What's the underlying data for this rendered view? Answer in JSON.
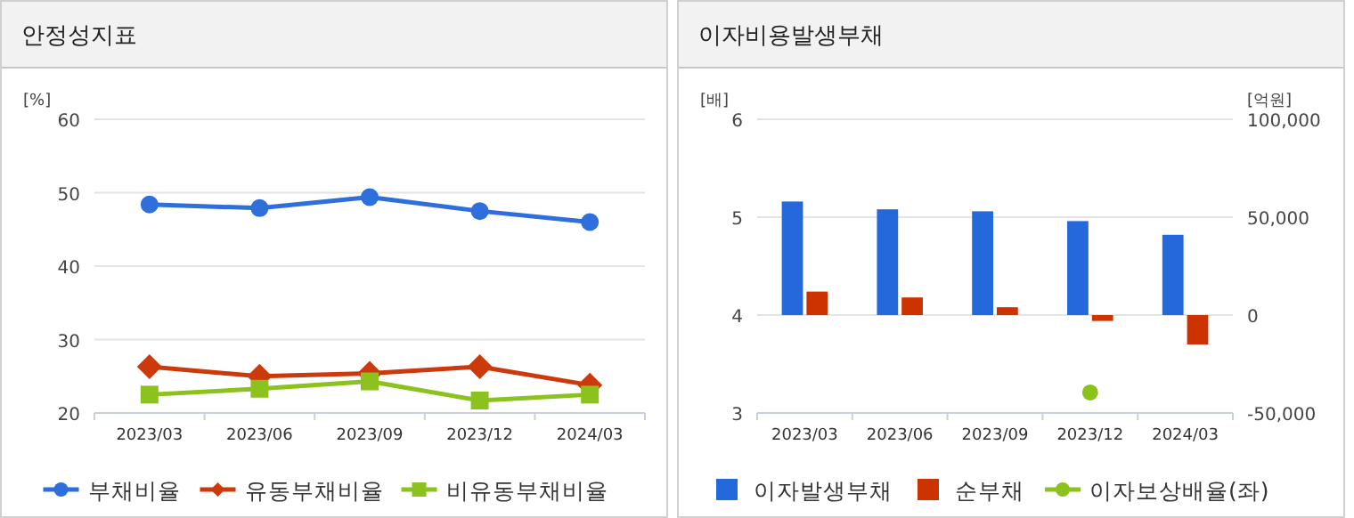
{
  "chart_data": [
    {
      "type": "line",
      "title": "안정성지표",
      "ylabel": "[%]",
      "categories": [
        "2023/03",
        "2023/06",
        "2023/09",
        "2023/12",
        "2024/03"
      ],
      "ylim": [
        20,
        60
      ],
      "yticks": [
        20,
        30,
        40,
        50,
        60
      ],
      "grid": "y",
      "legend": "bottom",
      "line_style": "solid",
      "series": [
        {
          "name": "부채비율",
          "color": "#2f6fdc",
          "marker": "circle",
          "values": [
            48.4,
            47.9,
            49.4,
            47.5,
            46.0
          ]
        },
        {
          "name": "유동부채비율",
          "color": "#cc3a0c",
          "marker": "diamond",
          "values": [
            26.3,
            25.0,
            25.4,
            26.3,
            23.8
          ]
        },
        {
          "name": "비유동부채비율",
          "color": "#8cc21d",
          "marker": "square",
          "values": [
            22.5,
            23.3,
            24.3,
            21.7,
            22.5
          ]
        }
      ]
    },
    {
      "type": "bar",
      "title": "이자비용발생부채",
      "ylabel": "[배]",
      "y2label": "[억원]",
      "categories": [
        "2023/03",
        "2023/06",
        "2023/09",
        "2023/12",
        "2024/03"
      ],
      "ylim": [
        3,
        6
      ],
      "yticks": [
        3,
        4,
        5,
        6
      ],
      "y2lim": [
        -50000,
        100000
      ],
      "y2ticks": [
        {
          "value": -50000,
          "label": "-50,000"
        },
        {
          "value": 0,
          "label": "0"
        },
        {
          "value": 50000,
          "label": "50,000"
        },
        {
          "value": 100000,
          "label": "100,000"
        }
      ],
      "grid": "y",
      "legend": "bottom",
      "series": [
        {
          "name": "이자발생부채",
          "color": "#2468dc",
          "axis": "y2",
          "values": [
            58000,
            54000,
            53000,
            48000,
            41000
          ]
        },
        {
          "name": "순부채",
          "color": "#cc3300",
          "axis": "y2",
          "values": [
            12000,
            9000,
            4000,
            -3000,
            -15000
          ]
        },
        {
          "name": "이자보상배율(좌)",
          "type": "scatter",
          "marker": "circle",
          "color": "#8cc21d",
          "values": [
            null,
            null,
            null,
            3.21,
            null
          ]
        }
      ]
    }
  ]
}
